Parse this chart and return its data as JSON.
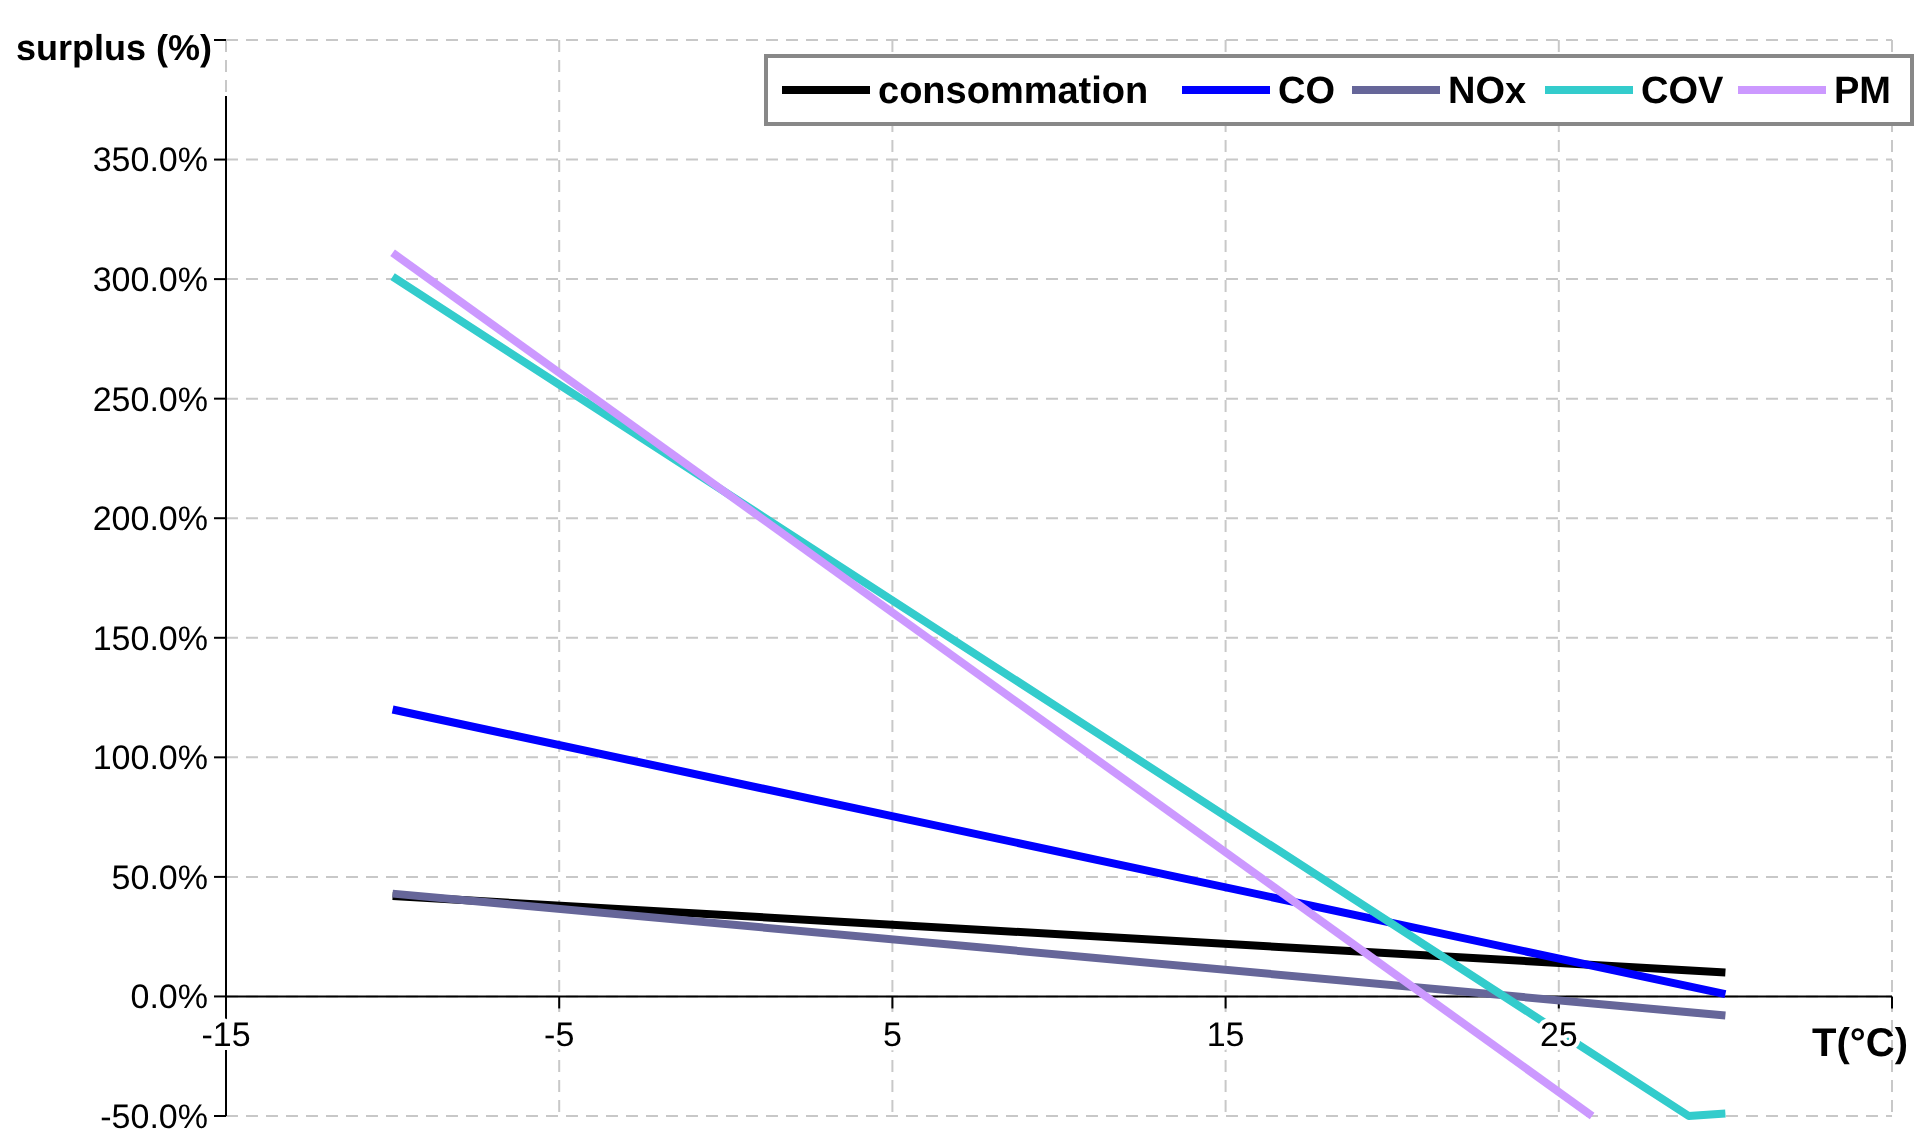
{
  "chart_data": {
    "type": "line",
    "ylabel": "surplus (%)",
    "xlabel": "T(°C)",
    "xlim": [
      -15,
      35
    ],
    "xticks": [
      -15,
      -5,
      5,
      15,
      25,
      {
        "value": 35,
        "label": null
      }
    ],
    "ylim": [
      -50,
      400
    ],
    "yticks": [
      {
        "value": -50,
        "label": "-50.0%"
      },
      {
        "value": 0,
        "label": "0.0%"
      },
      {
        "value": 50,
        "label": "50.0%"
      },
      {
        "value": 100,
        "label": "100.0%"
      },
      {
        "value": 150,
        "label": "150.0%"
      },
      {
        "value": 200,
        "label": "200.0%"
      },
      {
        "value": 250,
        "label": "250.0%"
      },
      {
        "value": 300,
        "label": "300.0%"
      },
      {
        "value": 350,
        "label": "350.0%"
      },
      {
        "value": 400,
        "label": null
      }
    ],
    "grid": true,
    "legend": "top right",
    "line_style": "solid",
    "series": [
      {
        "name": "consommation",
        "color": "#000000",
        "x": [
          -10,
          30
        ],
        "values": [
          42,
          10
        ]
      },
      {
        "name": "CO",
        "color": "#0000ff",
        "x": [
          -10,
          30
        ],
        "values": [
          120,
          1
        ]
      },
      {
        "name": "NOx",
        "color": "#666699",
        "x": [
          -10,
          30
        ],
        "values": [
          43,
          -8
        ]
      },
      {
        "name": "COV",
        "color": "#33cccc",
        "x": [
          -10,
          28.9,
          30
        ],
        "values": [
          301,
          -50,
          -49
        ]
      },
      {
        "name": "PM",
        "color": "#cc99ff",
        "x": [
          -10,
          26
        ],
        "values": [
          311,
          -50
        ]
      }
    ]
  }
}
